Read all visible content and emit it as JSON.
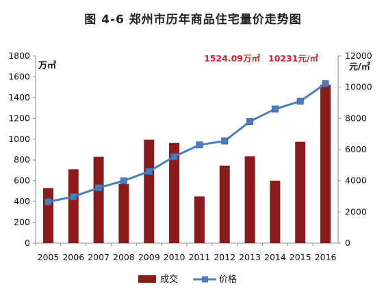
{
  "chart_data": {
    "type": "bar+line",
    "title": "图 4-6  郑州市历年商品住宅量价走势图",
    "categories": [
      "2005",
      "2006",
      "2007",
      "2008",
      "2009",
      "2010",
      "2011",
      "2012",
      "2013",
      "2014",
      "2015",
      "2016"
    ],
    "series": [
      {
        "name": "成交",
        "type": "bar",
        "axis": "left",
        "color": "#8b1a1a",
        "values": [
          530,
          710,
          830,
          570,
          995,
          965,
          450,
          745,
          835,
          600,
          975,
          1524.09
        ]
      },
      {
        "name": "价格",
        "type": "line",
        "axis": "right",
        "color": "#4a7ebb",
        "values": [
          2650,
          2980,
          3550,
          4000,
          4600,
          5550,
          6300,
          6550,
          7800,
          8600,
          9100,
          10231
        ]
      }
    ],
    "y_left": {
      "unit": "万㎡",
      "min": 0,
      "max": 1800,
      "ticks": [
        0,
        200,
        400,
        600,
        800,
        1000,
        1200,
        1400,
        1600,
        1800
      ]
    },
    "y_right": {
      "unit": "元/㎡",
      "min": 0,
      "max": 12000,
      "ticks": [
        0,
        2000,
        4000,
        6000,
        8000,
        10000,
        12000
      ]
    },
    "annotations": [
      {
        "text": "1524.09万㎡"
      },
      {
        "text": "10231元/㎡"
      }
    ],
    "legend_position": "bottom",
    "grid": false
  }
}
